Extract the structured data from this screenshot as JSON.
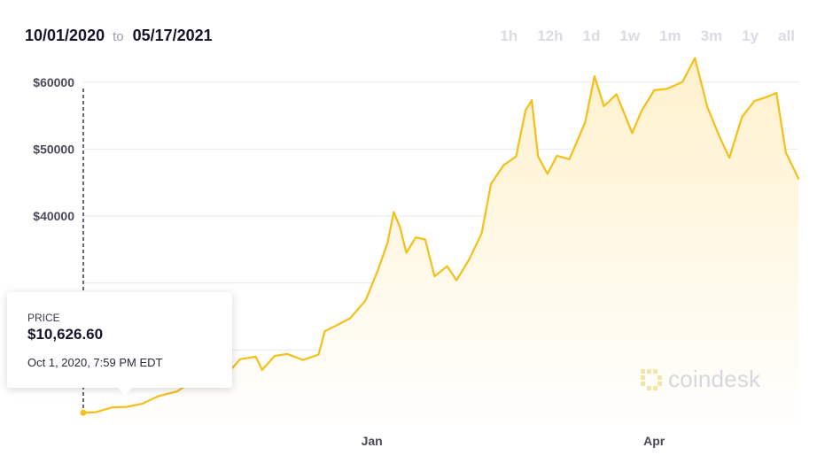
{
  "header": {
    "start_date": "10/01/2020",
    "to_label": "to",
    "end_date": "05/17/2021"
  },
  "range_buttons": [
    "1h",
    "12h",
    "1d",
    "1w",
    "1m",
    "3m",
    "1y",
    "all"
  ],
  "tooltip": {
    "label": "PRICE",
    "price": "$10,626.60",
    "datetime": "Oct 1, 2020, 7:59 PM EDT"
  },
  "watermark": "coindesk",
  "colors": {
    "line": "#f5bf18",
    "fill_top": "#fff1cc",
    "grid": "#e6e8f2",
    "axis_text": "#4a4a5a",
    "hover_line": "#1a1a2e"
  },
  "chart_data": {
    "type": "area",
    "title": "",
    "xlabel": "",
    "ylabel": "",
    "x_ticks": [
      {
        "label": "Jan",
        "date": "2021-01-01"
      },
      {
        "label": "Apr",
        "date": "2021-04-01"
      }
    ],
    "y_ticks": [
      {
        "label": "$40000",
        "value": 40000
      },
      {
        "label": "$50000",
        "value": 50000
      },
      {
        "label": "$60000",
        "value": 60000
      }
    ],
    "grid": true,
    "ylim": [
      8000,
      65000
    ],
    "xlim": [
      "2020-10-01",
      "2021-05-17"
    ],
    "series": [
      {
        "name": "",
        "x": [
          "2020-10-01",
          "2020-10-05",
          "2020-10-10",
          "2020-10-15",
          "2020-10-20",
          "2020-10-25",
          "2020-10-31",
          "2020-11-05",
          "2020-11-10",
          "2020-11-15",
          "2020-11-20",
          "2020-11-25",
          "2020-11-27",
          "2020-12-01",
          "2020-12-05",
          "2020-12-10",
          "2020-12-15",
          "2020-12-17",
          "2020-12-20",
          "2020-12-25",
          "2020-12-30",
          "2021-01-03",
          "2021-01-06",
          "2021-01-08",
          "2021-01-10",
          "2021-01-12",
          "2021-01-15",
          "2021-01-18",
          "2021-01-21",
          "2021-01-25",
          "2021-01-28",
          "2021-02-01",
          "2021-02-05",
          "2021-02-08",
          "2021-02-12",
          "2021-02-16",
          "2021-02-19",
          "2021-02-21",
          "2021-02-23",
          "2021-02-26",
          "2021-03-01",
          "2021-03-05",
          "2021-03-10",
          "2021-03-13",
          "2021-03-16",
          "2021-03-20",
          "2021-03-25",
          "2021-03-28",
          "2021-04-01",
          "2021-04-05",
          "2021-04-10",
          "2021-04-14",
          "2021-04-18",
          "2021-04-22",
          "2021-04-25",
          "2021-04-29",
          "2021-05-03",
          "2021-05-07",
          "2021-05-10",
          "2021-05-13",
          "2021-05-17"
        ],
        "values": [
          10626,
          10700,
          11400,
          11500,
          12000,
          13100,
          13800,
          15500,
          15300,
          16000,
          18600,
          19000,
          17000,
          19100,
          19400,
          18500,
          19300,
          22800,
          23500,
          24700,
          27400,
          32000,
          36000,
          40600,
          38300,
          34500,
          36800,
          36500,
          31000,
          32500,
          30400,
          33500,
          37400,
          44800,
          47600,
          48900,
          55800,
          57300,
          48900,
          46300,
          49000,
          48500,
          54000,
          60900,
          56400,
          58200,
          52400,
          55700,
          58800,
          59000,
          60000,
          63600,
          56200,
          51700,
          48700,
          54800,
          57200,
          57800,
          58400,
          49500,
          45600
        ]
      }
    ]
  }
}
